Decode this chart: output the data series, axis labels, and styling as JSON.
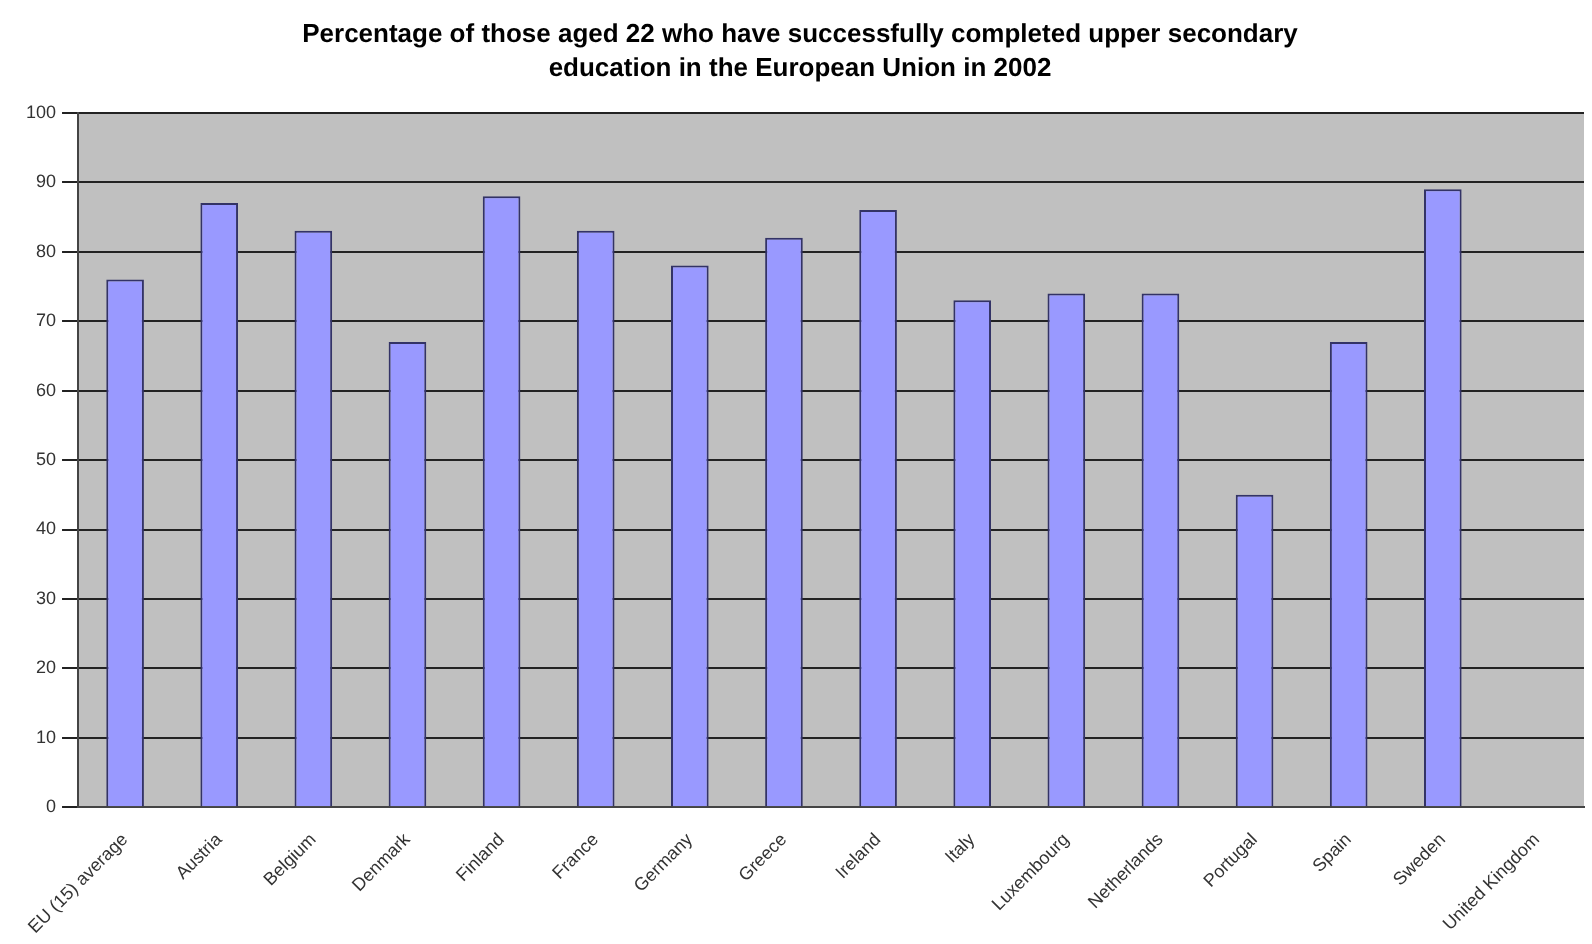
{
  "chart_data": {
    "type": "bar",
    "title": "Percentage of those aged 22 who have successfully completed upper secondary education in the European Union in 2002",
    "categories": [
      "EU (15) average",
      "Austria",
      "Belgium",
      "Denmark",
      "Finland",
      "France",
      "Germany",
      "Greece",
      "Ireland",
      "Italy",
      "Luxembourg",
      "Netherlands",
      "Portugal",
      "Spain",
      "Sweden",
      "United Kingdom"
    ],
    "values": [
      76,
      87,
      83,
      67,
      88,
      83,
      78,
      82,
      86,
      73,
      74,
      74,
      45,
      67,
      89,
      null
    ],
    "color": "#9999ff",
    "ylim": [
      0,
      100
    ],
    "yticks": [
      0,
      10,
      20,
      30,
      40,
      50,
      60,
      70,
      80,
      90,
      100
    ],
    "grid": "y"
  }
}
